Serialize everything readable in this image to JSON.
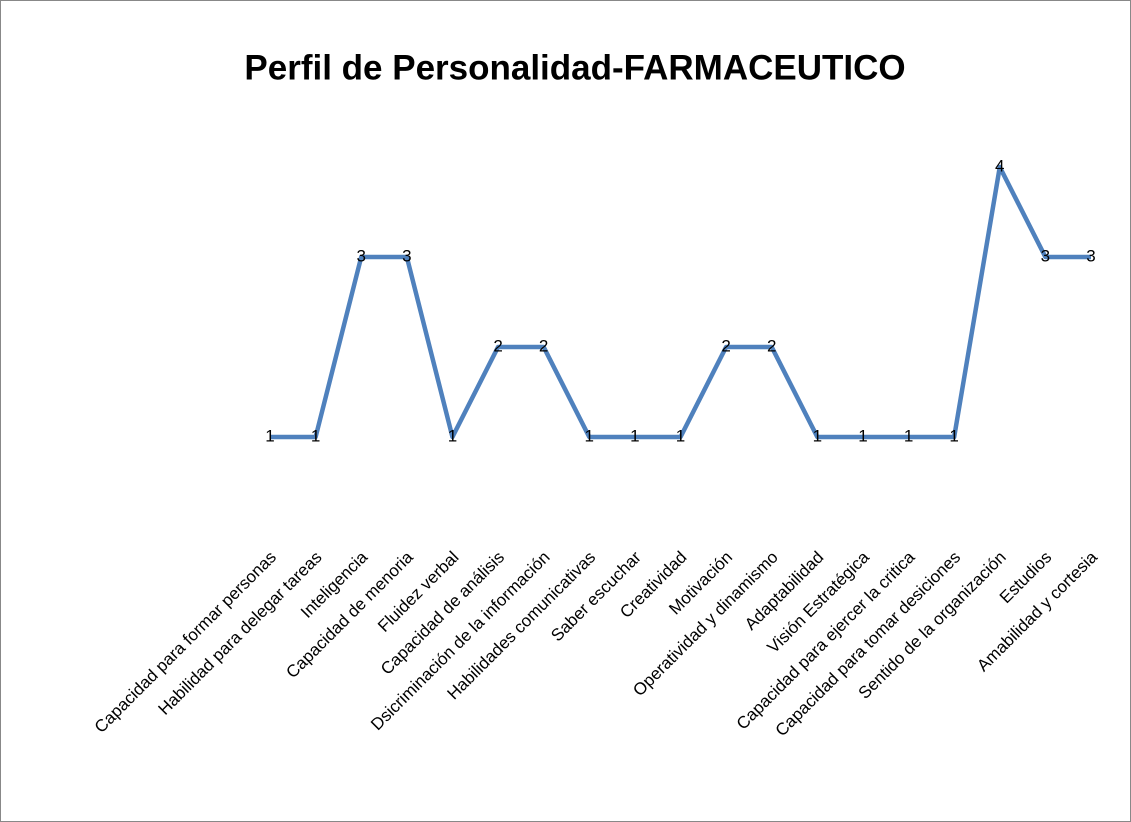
{
  "chart_data": {
    "type": "line",
    "title": "Perfil de Personalidad-FARMACEUTICO",
    "categories": [
      "Capacidad para formar personas",
      "Habilidad para delegar tareas",
      "Inteligencia",
      "Capacidad de menoria",
      "Fluidez verbal",
      "Capacidad de análisis",
      "Dsicriminación de la información",
      "Habilidades comunicativas",
      "Saber escuchar",
      "Creatividad",
      "Motivación",
      "Operatividad y dinamismo",
      "Adaptabilidad",
      "Visión Estratégica",
      "Capacidad para ejercer la critica",
      "Capacidad para tomar desiciones",
      "Sentido de la organización",
      "Estudios",
      "Amabilidad y cortesia"
    ],
    "series": [
      {
        "name": "Perfil",
        "color": "#4f81bd",
        "values": [
          1,
          1,
          3,
          3,
          1,
          2,
          2,
          1,
          1,
          1,
          2,
          2,
          1,
          1,
          1,
          1,
          4,
          3,
          3
        ]
      }
    ]
  }
}
